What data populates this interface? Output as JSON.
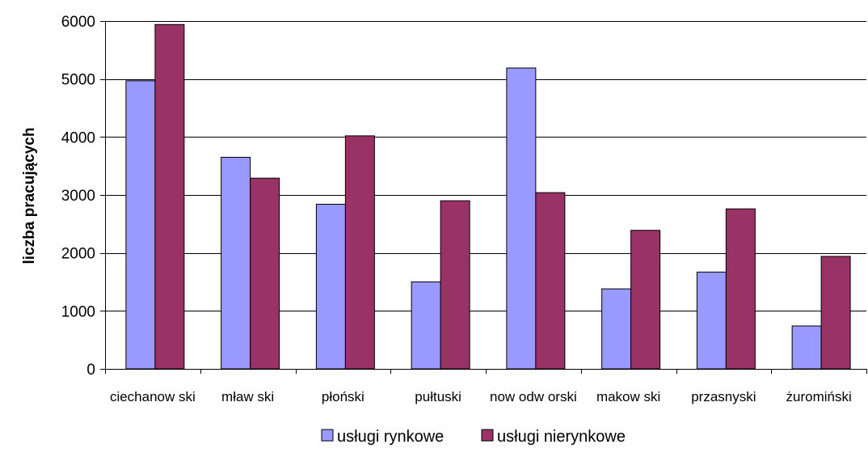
{
  "chart_data": {
    "type": "bar",
    "categories": [
      "ciechanow ski",
      "mław ski",
      "płoński",
      "pułtuski",
      "now odw orski",
      "makow ski",
      "przasnyski",
      "żuromiński"
    ],
    "series": [
      {
        "name": "usługi rynkowe",
        "color": "#9999ff",
        "values": [
          4970,
          3650,
          2840,
          1500,
          5190,
          1380,
          1670,
          740
        ]
      },
      {
        "name": "usługi nierynkowe",
        "color": "#993366",
        "values": [
          5940,
          3290,
          4020,
          2900,
          3040,
          2390,
          2760,
          1940
        ]
      }
    ],
    "title": "",
    "xlabel": "",
    "ylabel": "liczba pracujących",
    "ylim": [
      0,
      6000
    ],
    "yticks": [
      0,
      1000,
      2000,
      3000,
      4000,
      5000,
      6000
    ],
    "grid": true,
    "legend": "bottom"
  }
}
